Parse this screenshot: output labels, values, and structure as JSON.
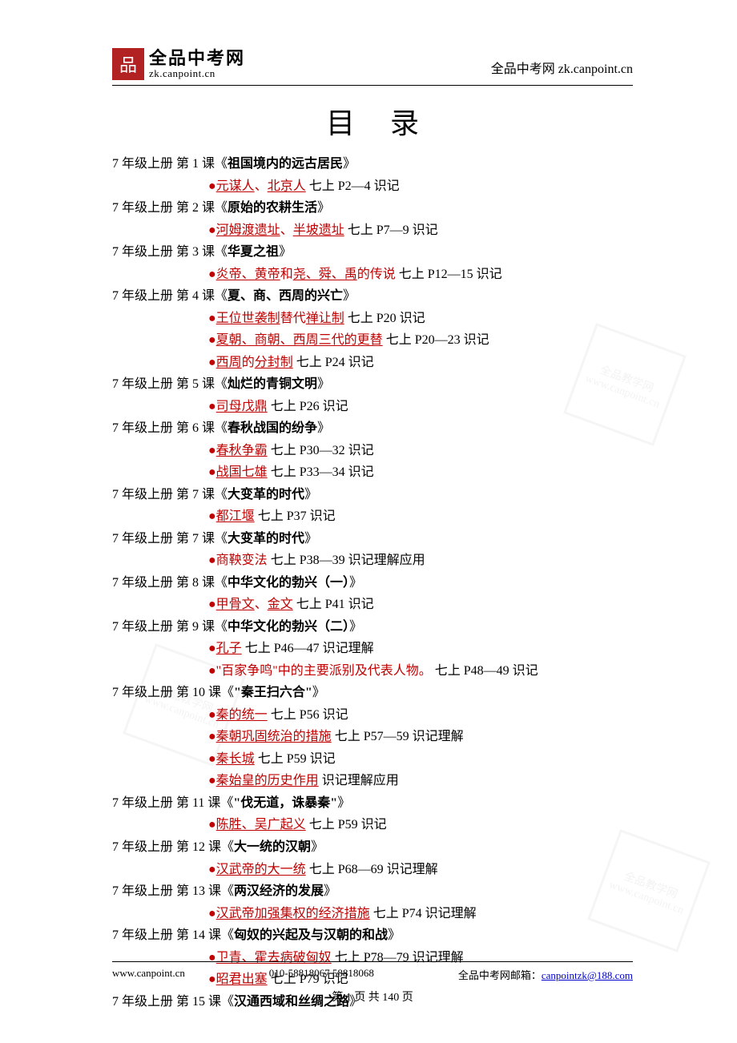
{
  "header": {
    "logo_mark": "品",
    "logo_cn": "全品中考网",
    "logo_url": "zk.canpoint.cn",
    "right_text": "全品中考网  zk.canpoint.cn"
  },
  "title": "目录",
  "entries": [
    {
      "type": "chapter",
      "text_before": "7 年级上册  第 1 课《",
      "title": "祖国境内的远古居民",
      "text_after": "》"
    },
    {
      "type": "sub",
      "parts": [
        {
          "t": "bullet",
          "v": "●"
        },
        {
          "t": "kw",
          "v": "元谋人"
        },
        {
          "t": "red",
          "v": "、"
        },
        {
          "t": "kw",
          "v": "北京人"
        },
        {
          "t": "plain",
          "v": "   七上 P2—4   识记"
        }
      ]
    },
    {
      "type": "chapter",
      "text_before": "7 年级上册  第 2 课《",
      "title": "原始的农耕生活",
      "text_after": "》"
    },
    {
      "type": "sub",
      "parts": [
        {
          "t": "bullet",
          "v": "●"
        },
        {
          "t": "kw",
          "v": "河姆渡遗址"
        },
        {
          "t": "red",
          "v": "、"
        },
        {
          "t": "kw",
          "v": "半坡遗址"
        },
        {
          "t": "plain",
          "v": "   七上 P7—9   识记"
        }
      ]
    },
    {
      "type": "chapter",
      "text_before": "7 年级上册  第 3 课《",
      "title": "华夏之祖",
      "text_after": "》"
    },
    {
      "type": "sub",
      "parts": [
        {
          "t": "bullet",
          "v": "●"
        },
        {
          "t": "kw",
          "v": "炎帝、黄帝"
        },
        {
          "t": "red",
          "v": "和"
        },
        {
          "t": "kw",
          "v": "尧、舜、禹"
        },
        {
          "t": "red",
          "v": "的传说"
        },
        {
          "t": "plain",
          "v": "   七上 P12—15   识记"
        }
      ]
    },
    {
      "type": "chapter",
      "text_before": "7 年级上册  第 4 课《",
      "title": "夏、商、西周的兴亡",
      "text_after": "》"
    },
    {
      "type": "sub",
      "parts": [
        {
          "t": "bullet",
          "v": "●"
        },
        {
          "t": "kw",
          "v": "王位世袭制"
        },
        {
          "t": "red",
          "v": "替代"
        },
        {
          "t": "kw",
          "v": "禅让制"
        },
        {
          "t": "plain",
          "v": "   七上 P20   识记"
        }
      ]
    },
    {
      "type": "sub",
      "parts": [
        {
          "t": "bullet",
          "v": "●"
        },
        {
          "t": "kw",
          "v": "夏朝、商朝、西周三代的更替"
        },
        {
          "t": "plain",
          "v": "   七上 P20—23   识记"
        }
      ]
    },
    {
      "type": "sub",
      "parts": [
        {
          "t": "bullet",
          "v": "●"
        },
        {
          "t": "kw",
          "v": "西周"
        },
        {
          "t": "red",
          "v": "的"
        },
        {
          "t": "kw",
          "v": "分封制"
        },
        {
          "t": "plain",
          "v": "   七上 P24   识记"
        }
      ]
    },
    {
      "type": "chapter",
      "text_before": "7 年级上册  第 5 课《",
      "title": "灿烂的青铜文明",
      "text_after": "》"
    },
    {
      "type": "sub",
      "parts": [
        {
          "t": "bullet",
          "v": "●"
        },
        {
          "t": "kw",
          "v": "司母戊鼎"
        },
        {
          "t": "plain",
          "v": "   七上 P26   识记"
        }
      ]
    },
    {
      "type": "chapter",
      "text_before": "7 年级上册  第 6 课《",
      "title": "春秋战国的纷争",
      "text_after": "》"
    },
    {
      "type": "sub",
      "parts": [
        {
          "t": "bullet",
          "v": "●"
        },
        {
          "t": "kw",
          "v": "春秋争霸"
        },
        {
          "t": "plain",
          "v": "   七上 P30—32   识记"
        }
      ]
    },
    {
      "type": "sub",
      "parts": [
        {
          "t": "bullet",
          "v": "●"
        },
        {
          "t": "kw",
          "v": "战国七雄"
        },
        {
          "t": "plain",
          "v": "   七上 P33—34   识记"
        }
      ]
    },
    {
      "type": "chapter",
      "text_before": "7 年级上册  第 7 课《",
      "title": "大变革的时代",
      "text_after": "》"
    },
    {
      "type": "sub",
      "parts": [
        {
          "t": "bullet",
          "v": "●"
        },
        {
          "t": "kw",
          "v": "都江堰"
        },
        {
          "t": "plain",
          "v": "   七上 P37   识记"
        }
      ]
    },
    {
      "type": "chapter",
      "text_before": "7 年级上册  第 7 课《",
      "title": "大变革的时代",
      "text_after": "》"
    },
    {
      "type": "sub",
      "parts": [
        {
          "t": "bullet",
          "v": "●"
        },
        {
          "t": "red",
          "v": "商鞅变法"
        },
        {
          "t": "plain",
          "v": "   七上 P38—39   识记理解应用"
        }
      ]
    },
    {
      "type": "chapter",
      "text_before": "7 年级上册  第 8 课《",
      "title": "中华文化的勃兴（一）",
      "text_after": "》"
    },
    {
      "type": "sub",
      "parts": [
        {
          "t": "bullet",
          "v": "●"
        },
        {
          "t": "kw",
          "v": "甲骨文"
        },
        {
          "t": "red",
          "v": "、"
        },
        {
          "t": "kw",
          "v": "金文"
        },
        {
          "t": "plain",
          "v": "   七上 P41   识记"
        }
      ]
    },
    {
      "type": "chapter",
      "text_before": "7 年级上册  第 9 课《",
      "title": "中华文化的勃兴（二）",
      "text_after": "》"
    },
    {
      "type": "sub",
      "parts": [
        {
          "t": "bullet",
          "v": "●"
        },
        {
          "t": "kw",
          "v": "孔子"
        },
        {
          "t": "plain",
          "v": "   七上 P46—47   识记理解"
        }
      ]
    },
    {
      "type": "sub",
      "parts": [
        {
          "t": "bullet",
          "v": "●"
        },
        {
          "t": "red",
          "v": "\"百家争鸣\"中的主要派别及代表人物。"
        },
        {
          "t": "plain",
          "v": "   七上 P48—49   识记"
        }
      ]
    },
    {
      "type": "chapter",
      "text_before": "7 年级上册  第 10 课《",
      "title": "\"秦王扫六合\"",
      "text_after": "》"
    },
    {
      "type": "sub",
      "parts": [
        {
          "t": "bullet",
          "v": "●"
        },
        {
          "t": "kw",
          "v": "秦的统一"
        },
        {
          "t": "plain",
          "v": "   七上 P56   识记"
        }
      ]
    },
    {
      "type": "sub",
      "parts": [
        {
          "t": "bullet",
          "v": "●"
        },
        {
          "t": "kw",
          "v": "秦朝巩固统治的措施"
        },
        {
          "t": "plain",
          "v": "   七上 P57—59   识记理解"
        }
      ]
    },
    {
      "type": "sub",
      "parts": [
        {
          "t": "bullet",
          "v": "●"
        },
        {
          "t": "kw",
          "v": "秦长城"
        },
        {
          "t": "plain",
          "v": "   七上 P59   识记"
        }
      ]
    },
    {
      "type": "sub",
      "parts": [
        {
          "t": "bullet",
          "v": "●"
        },
        {
          "t": "kw",
          "v": "秦始皇的历史作用"
        },
        {
          "t": "plain",
          "v": "      识记理解应用"
        }
      ]
    },
    {
      "type": "chapter",
      "text_before": "7 年级上册  第 11 课《",
      "title": "\"伐无道，诛暴秦\"",
      "text_after": "》"
    },
    {
      "type": "sub",
      "parts": [
        {
          "t": "bullet",
          "v": "●"
        },
        {
          "t": "kw",
          "v": "陈胜、吴广起义"
        },
        {
          "t": "plain",
          "v": "   七上 P59   识记"
        }
      ]
    },
    {
      "type": "chapter",
      "text_before": "7 年级上册  第 12 课《",
      "title": "大一统的汉朝",
      "text_after": "》"
    },
    {
      "type": "sub",
      "parts": [
        {
          "t": "bullet",
          "v": "●"
        },
        {
          "t": "kw",
          "v": "汉武帝的大一统"
        },
        {
          "t": "plain",
          "v": "   七上 P68—69   识记理解"
        }
      ]
    },
    {
      "type": "chapter",
      "text_before": "7 年级上册  第 13 课《",
      "title": "两汉经济的发展",
      "text_after": "》"
    },
    {
      "type": "sub",
      "parts": [
        {
          "t": "bullet",
          "v": "●"
        },
        {
          "t": "kw",
          "v": "汉武帝加强集权的经济措施"
        },
        {
          "t": "plain",
          "v": "   七上 P74   识记理解"
        }
      ]
    },
    {
      "type": "chapter",
      "text_before": "7 年级上册  第 14 课《",
      "title": "匈奴的兴起及与汉朝的和战",
      "text_after": "》"
    },
    {
      "type": "sub",
      "parts": [
        {
          "t": "bullet",
          "v": "●"
        },
        {
          "t": "kw",
          "v": "卫青、霍去病破匈奴"
        },
        {
          "t": "plain",
          "v": "   七上 P78—79   识记理解"
        }
      ]
    },
    {
      "type": "sub",
      "parts": [
        {
          "t": "bullet",
          "v": "●"
        },
        {
          "t": "kw",
          "v": "昭君出塞"
        },
        {
          "t": "plain",
          "v": "   七上 P79   识记"
        }
      ]
    },
    {
      "type": "chapter",
      "text_before": "7 年级上册  第 15 课《",
      "title": "汉通西域和丝绸之路",
      "text_after": "》"
    }
  ],
  "footer": {
    "left": "www.canpoint.cn",
    "mid": "010-58818067   58818068",
    "right_label": "全品中考网邮箱：",
    "email": "canpointzk@188.com",
    "page_label": "第 1 页 共 140 页"
  },
  "colors": {
    "keyword": "#c00000",
    "text": "#000000",
    "link": "#0000cc",
    "logo_bg": "#b22222",
    "background": "#ffffff"
  }
}
